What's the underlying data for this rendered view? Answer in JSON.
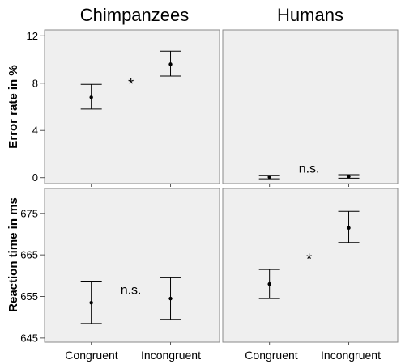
{
  "chart_data": [
    {
      "type": "scatter",
      "title": "Chimpanzees",
      "ylabel": "Error rate in %",
      "ylim": [
        -0.5,
        12.5
      ],
      "yticks": [
        0,
        4,
        8,
        12
      ],
      "categories": [
        "Congruent",
        "Incongruent"
      ],
      "values": [
        6.8,
        9.6
      ],
      "lower": [
        5.8,
        8.6
      ],
      "upper": [
        7.9,
        10.7
      ],
      "annotation": "*"
    },
    {
      "type": "scatter",
      "title": "Humans",
      "ylabel": "",
      "ylim": [
        -0.5,
        12.5
      ],
      "yticks": [
        0,
        4,
        8,
        12
      ],
      "categories": [
        "Congruent",
        "Incongruent"
      ],
      "values": [
        0.05,
        0.1
      ],
      "lower": [
        -0.1,
        -0.05
      ],
      "upper": [
        0.2,
        0.25
      ],
      "annotation": "n.s."
    },
    {
      "type": "scatter",
      "title": "",
      "ylabel": "Reaction time in ms",
      "ylim": [
        644,
        681
      ],
      "yticks": [
        645,
        655,
        665,
        675
      ],
      "categories": [
        "Congruent",
        "Incongruent"
      ],
      "values": [
        653.5,
        654.5
      ],
      "lower": [
        648.5,
        649.5
      ],
      "upper": [
        658.5,
        659.5
      ],
      "annotation": "n.s."
    },
    {
      "type": "scatter",
      "title": "",
      "ylabel": "",
      "ylim": [
        644,
        681
      ],
      "yticks": [
        645,
        655,
        665,
        675
      ],
      "categories": [
        "Congruent",
        "Incongruent"
      ],
      "values": [
        658,
        671.5
      ],
      "lower": [
        654.5,
        668
      ],
      "upper": [
        661.5,
        675.5
      ],
      "annotation": "*"
    }
  ],
  "column_titles": [
    "Chimpanzees",
    "Humans"
  ],
  "row_titles": [
    "Error rate in %",
    "Reaction time in ms"
  ],
  "x_categories": [
    "Congruent",
    "Incongruent",
    "Congruent",
    "Incongruent"
  ]
}
